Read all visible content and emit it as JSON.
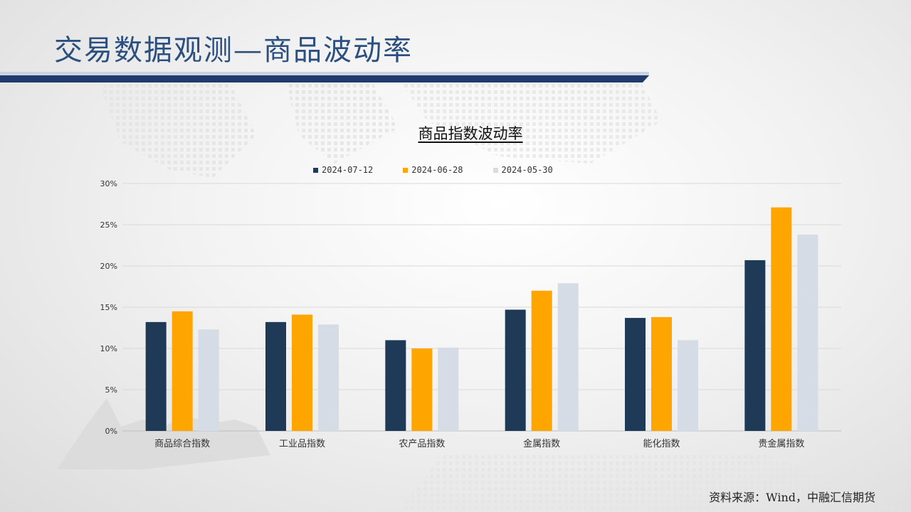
{
  "slide_title": "交易数据观测—商品波动率",
  "source": "资料来源：Wind，中融汇信期货",
  "chart_data": {
    "type": "bar",
    "title": "商品指数波动率",
    "categories": [
      "商品综合指数",
      "工业品指数",
      "农产品指数",
      "金属指数",
      "能化指数",
      "贵金属指数"
    ],
    "series": [
      {
        "name": "2024-07-12",
        "color": "#1f3a56",
        "values": [
          13.2,
          13.2,
          11.0,
          14.7,
          13.7,
          20.7
        ]
      },
      {
        "name": "2024-06-28",
        "color": "#ffa500",
        "values": [
          14.5,
          14.1,
          10.0,
          17.0,
          13.8,
          27.1
        ]
      },
      {
        "name": "2024-05-30",
        "color": "#d6dce5",
        "values": [
          12.3,
          12.9,
          10.1,
          17.9,
          11.0,
          23.8
        ]
      }
    ],
    "y_ticks": [
      "0%",
      "5%",
      "10%",
      "15%",
      "20%",
      "25%",
      "30%"
    ],
    "ylim": [
      0,
      30
    ],
    "grid": true,
    "legend_position": "top"
  }
}
